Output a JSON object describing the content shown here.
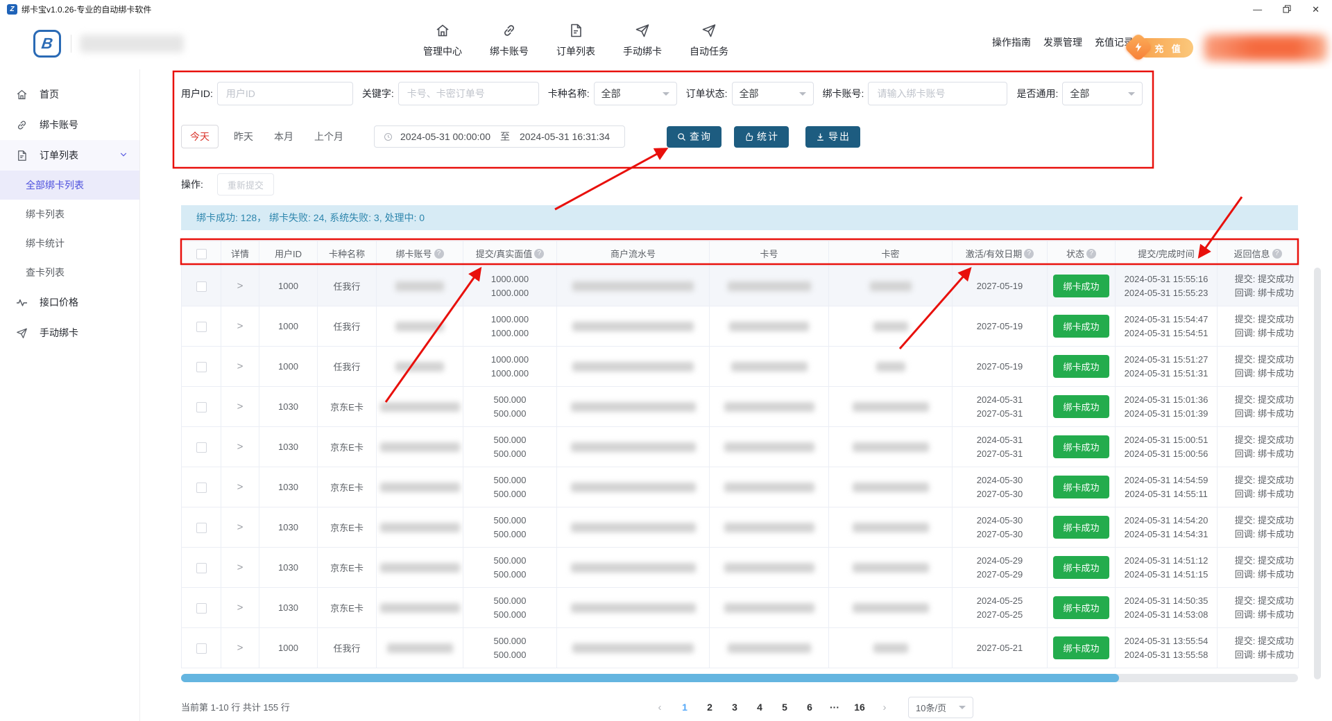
{
  "titlebar": {
    "title": "绑卡宝v1.0.26-专业的自动绑卡软件"
  },
  "header": {
    "nav": [
      {
        "label": "管理中心",
        "icon": "home-icon"
      },
      {
        "label": "绑卡账号",
        "icon": "link-icon"
      },
      {
        "label": "订单列表",
        "icon": "doc-icon"
      },
      {
        "label": "手动绑卡",
        "icon": "plane-icon"
      },
      {
        "label": "自动任务",
        "icon": "plane-icon"
      }
    ],
    "links": [
      {
        "label": "操作指南"
      },
      {
        "label": "发票管理"
      },
      {
        "label": "充值记录"
      }
    ],
    "recharge_label": "充 值"
  },
  "sidebar": {
    "items": [
      {
        "label": "首页",
        "icon": "home-icon"
      },
      {
        "label": "绑卡账号",
        "icon": "link-icon"
      },
      {
        "label": "订单列表",
        "icon": "doc-icon",
        "expanded": true,
        "children": [
          {
            "label": "全部绑卡列表",
            "active": true
          },
          {
            "label": "绑卡列表"
          },
          {
            "label": "绑卡统计"
          },
          {
            "label": "查卡列表"
          }
        ]
      },
      {
        "label": "接口价格",
        "icon": "pulse-icon"
      },
      {
        "label": "手动绑卡",
        "icon": "plane-icon"
      }
    ]
  },
  "filters": {
    "user_id_label": "用户ID:",
    "user_id_placeholder": "用户ID",
    "keyword_label": "关键字:",
    "keyword_placeholder": "卡号、卡密订单号",
    "card_type_label": "卡种名称:",
    "card_type_value": "全部",
    "order_status_label": "订单状态:",
    "order_status_value": "全部",
    "bind_account_label": "绑卡账号:",
    "bind_account_placeholder": "请输入绑卡账号",
    "general_label": "是否通用:",
    "general_value": "全部",
    "quick_ranges": [
      {
        "label": "今天",
        "active": true
      },
      {
        "label": "昨天"
      },
      {
        "label": "本月"
      },
      {
        "label": "上个月"
      }
    ],
    "date_start": "2024-05-31 00:00:00",
    "date_separator": "至",
    "date_end": "2024-05-31 16:31:34",
    "query_label": "查询",
    "stats_label": "统计",
    "export_label": "导出"
  },
  "operation": {
    "label": "操作:",
    "resubmit_label": "重新提交"
  },
  "summary_text": "绑卡成功: 128， 绑卡失败: 24, 系统失败: 3, 处理中: 0",
  "table": {
    "headers": [
      {
        "label": "",
        "checkbox": true
      },
      {
        "label": "详情"
      },
      {
        "label": "用户ID"
      },
      {
        "label": "卡种名称"
      },
      {
        "label": "绑卡账号",
        "help": true
      },
      {
        "label": "提交/真实面值",
        "help": true
      },
      {
        "label": "商户流水号"
      },
      {
        "label": "卡号"
      },
      {
        "label": "卡密"
      },
      {
        "label": "激活/有效日期",
        "help": true
      },
      {
        "label": "状态",
        "help": true
      },
      {
        "label": "提交/完成时间"
      },
      {
        "label": "返回信息",
        "help": true
      }
    ],
    "rows": [
      {
        "user_id": "1000",
        "card_type": "任我行",
        "face_values": [
          "1000.000",
          "1000.000"
        ],
        "dates": [
          "2027-05-19"
        ],
        "status": "绑卡成功",
        "times": [
          "2024-05-31 15:55:16",
          "2024-05-31 15:55:23"
        ],
        "results": [
          "提交: 提交成功",
          "回调: 绑卡成功"
        ]
      },
      {
        "user_id": "1000",
        "card_type": "任我行",
        "face_values": [
          "1000.000",
          "1000.000"
        ],
        "dates": [
          "2027-05-19"
        ],
        "status": "绑卡成功",
        "times": [
          "2024-05-31 15:54:47",
          "2024-05-31 15:54:51"
        ],
        "results": [
          "提交: 提交成功",
          "回调: 绑卡成功"
        ]
      },
      {
        "user_id": "1000",
        "card_type": "任我行",
        "face_values": [
          "1000.000",
          "1000.000"
        ],
        "dates": [
          "2027-05-19"
        ],
        "status": "绑卡成功",
        "times": [
          "2024-05-31 15:51:27",
          "2024-05-31 15:51:31"
        ],
        "results": [
          "提交: 提交成功",
          "回调: 绑卡成功"
        ]
      },
      {
        "user_id": "1030",
        "card_type": "京东E卡",
        "face_values": [
          "500.000",
          "500.000"
        ],
        "dates": [
          "2024-05-31",
          "2027-05-31"
        ],
        "status": "绑卡成功",
        "times": [
          "2024-05-31 15:01:36",
          "2024-05-31 15:01:39"
        ],
        "results": [
          "提交: 提交成功",
          "回调: 绑卡成功"
        ]
      },
      {
        "user_id": "1030",
        "card_type": "京东E卡",
        "face_values": [
          "500.000",
          "500.000"
        ],
        "dates": [
          "2024-05-31",
          "2027-05-31"
        ],
        "status": "绑卡成功",
        "times": [
          "2024-05-31 15:00:51",
          "2024-05-31 15:00:56"
        ],
        "results": [
          "提交: 提交成功",
          "回调: 绑卡成功"
        ]
      },
      {
        "user_id": "1030",
        "card_type": "京东E卡",
        "face_values": [
          "500.000",
          "500.000"
        ],
        "dates": [
          "2024-05-30",
          "2027-05-30"
        ],
        "status": "绑卡成功",
        "times": [
          "2024-05-31 14:54:59",
          "2024-05-31 14:55:11"
        ],
        "results": [
          "提交: 提交成功",
          "回调: 绑卡成功"
        ]
      },
      {
        "user_id": "1030",
        "card_type": "京东E卡",
        "face_values": [
          "500.000",
          "500.000"
        ],
        "dates": [
          "2024-05-30",
          "2027-05-30"
        ],
        "status": "绑卡成功",
        "times": [
          "2024-05-31 14:54:20",
          "2024-05-31 14:54:31"
        ],
        "results": [
          "提交: 提交成功",
          "回调: 绑卡成功"
        ]
      },
      {
        "user_id": "1030",
        "card_type": "京东E卡",
        "face_values": [
          "500.000",
          "500.000"
        ],
        "dates": [
          "2024-05-29",
          "2027-05-29"
        ],
        "status": "绑卡成功",
        "times": [
          "2024-05-31 14:51:12",
          "2024-05-31 14:51:15"
        ],
        "results": [
          "提交: 提交成功",
          "回调: 绑卡成功"
        ]
      },
      {
        "user_id": "1030",
        "card_type": "京东E卡",
        "face_values": [
          "500.000",
          "500.000"
        ],
        "dates": [
          "2024-05-25",
          "2027-05-25"
        ],
        "status": "绑卡成功",
        "times": [
          "2024-05-31 14:50:35",
          "2024-05-31 14:53:08"
        ],
        "results": [
          "提交: 提交成功",
          "回调: 绑卡成功"
        ]
      },
      {
        "user_id": "1000",
        "card_type": "任我行",
        "face_values": [
          "500.000",
          "500.000"
        ],
        "dates": [
          "2027-05-21"
        ],
        "status": "绑卡成功",
        "times": [
          "2024-05-31 13:55:54",
          "2024-05-31 13:55:58"
        ],
        "results": [
          "提交: 提交成功",
          "回调: 绑卡成功"
        ]
      }
    ]
  },
  "pagination": {
    "info": "当前第 1-10 行 共计 155 行",
    "prev": "‹",
    "next": "›",
    "pages": [
      "1",
      "2",
      "3",
      "4",
      "5",
      "6",
      "···",
      "16"
    ],
    "active_page": "1",
    "page_size": "10条/页"
  },
  "colors": {
    "primary_button": "#1d5c80",
    "success_green": "#23ac4d",
    "annotation_red": "#e8100c",
    "summary_bg": "#d7ebf5",
    "summary_text": "#2e86ad",
    "sidebar_active": "#4d50dd",
    "pager_active": "#54a8f8",
    "today_red": "#d9342b"
  }
}
